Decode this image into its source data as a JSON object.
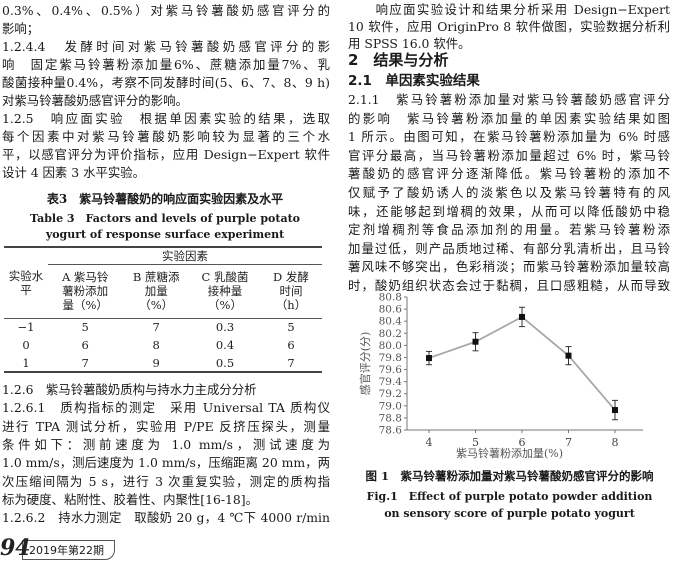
{
  "left": {
    "lines": [
      {
        "t": "0.3%、0.4%、0.5%）对紫马铃薯酸奶感官评分的",
        "s": ""
      },
      {
        "t": "影响；",
        "s": "last"
      },
      {
        "t": "1.2.4.4　发酵时间对紫马铃薯酸奶感官评分的影",
        "s": ""
      },
      {
        "t": "响　固定紫马铃薯粉添加量6%、蔗糖添加量7%、乳",
        "s": ""
      },
      {
        "t": "酸菌接种量0.4%，考察不同发酵时间(5、6、7、8、9 h)",
        "s": ""
      },
      {
        "t": "对紫马铃薯酸奶感官评分的影响。",
        "s": "last"
      },
      {
        "t": "1.2.5　响应面实验　根据单因素实验的结果，选取",
        "s": ""
      },
      {
        "t": "每个因素中对紫马铃薯酸奶影响较为显著的三个水",
        "s": ""
      },
      {
        "t": "平，以感官评分为评价指标，应用 Design−Expert 软件",
        "s": ""
      },
      {
        "t": "设计 4 因素 3 水平实验。",
        "s": "last"
      }
    ],
    "lines2": [
      {
        "t": "1.2.6　紫马铃薯酸奶质构与持水力主成分分析",
        "s": "last"
      },
      {
        "t": "1.2.6.1　质构指标的测定　采用 Universal TA 质构仪",
        "s": ""
      },
      {
        "t": "进行 TPA 测试分析，实验用 P/PE 反挤压探头，测量",
        "s": ""
      },
      {
        "t": "条件如下：测前速度为 1.0 mm/s，测试速度为",
        "s": ""
      },
      {
        "t": "1.0 mm/s，测后速度为 1.0 mm/s，压缩距离 20 mm，两",
        "s": ""
      },
      {
        "t": "次压缩间隔为 5 s，进行 3 次重复实验，测定的质构指",
        "s": ""
      },
      {
        "t": "标为硬度、粘附性、胶着性、内聚性[16-18]。",
        "s": "last"
      },
      {
        "t": "1.2.6.2　持水力测定　取酸奶 20 g，4 ℃下 4000 r/min",
        "s": ""
      }
    ]
  },
  "table": {
    "caption_cn": "表3　紫马铃薯酸奶的响应面实验因素及水平",
    "caption_en_1": "Table 3　Factors and levels of purple potato",
    "caption_en_2": "yogurt of response surface experiment",
    "group_header": "实验因素",
    "row_header": "实验水平",
    "columns": [
      "A 紫马铃薯粉添加量（%）",
      "B 蔗糖添加量（%）",
      "C 乳酸菌接种量（%）",
      "D 发酵时间（h）"
    ],
    "rows": [
      [
        "−1",
        "5",
        "7",
        "0.3",
        "5"
      ],
      [
        "0",
        "6",
        "8",
        "0.4",
        "6"
      ],
      [
        "1",
        "7",
        "9",
        "0.5",
        "7"
      ]
    ]
  },
  "right": {
    "lines": [
      {
        "t": "　　响应面实验设计和结果分析采用 Design−Expert",
        "s": ""
      },
      {
        "t": "10 软件，应用 OriginPro 8 软件做图，实验数据分析利",
        "s": ""
      },
      {
        "t": "用 SPSS 16.0 软件。",
        "s": "last"
      }
    ],
    "section": "2　结果与分析",
    "subsection": "2.1　单因素实验结果",
    "lines2": [
      {
        "t": "2.1.1　紫马铃薯粉添加量对紫马铃薯酸奶感官评分",
        "s": ""
      },
      {
        "t": "的影响　紫马铃薯粉添加量的单因素实验结果如图",
        "s": ""
      },
      {
        "t": "1 所示。由图可知，在紫马铃薯粉添加量为 6% 时感",
        "s": ""
      },
      {
        "t": "官评分最高，当马铃薯粉添加量超过 6% 时，紫马铃",
        "s": ""
      },
      {
        "t": "薯酸奶的感官评分逐渐降低。紫马铃薯粉的添加不",
        "s": ""
      },
      {
        "t": "仅赋予了酸奶诱人的淡紫色以及紫马铃薯特有的风",
        "s": ""
      },
      {
        "t": "味，还能够起到增稠的效果，从而可以降低酸奶中稳",
        "s": ""
      },
      {
        "t": "定剂增稠剂等食品添加剂的用量。若紫马铃薯粉添",
        "s": ""
      },
      {
        "t": "加量过低，则产品质地过稀、有部分乳清析出，且马铃",
        "s": ""
      },
      {
        "t": "薯风味不够突出，色彩稍淡；而紫马铃薯粉添加量较高",
        "s": ""
      },
      {
        "t": "时，酸奶组织状态会过于黏稠，且口感粗糙，从而导致",
        "s": ""
      }
    ]
  },
  "figure": {
    "caption_cn": "图 1　紫马铃薯粉添加量对紫马铃薯酸奶感官评分的影响",
    "caption_en_1": "Fig.1　Effect of purple potato powder addition",
    "caption_en_2": "on sensory score of purple potato yogurt"
  },
  "chart_data": {
    "type": "line",
    "xlabel": "紫马铃薯粉添加量(%)",
    "ylabel": "感官评分(分)",
    "x": [
      4,
      5,
      6,
      7,
      8
    ],
    "y": [
      79.79,
      80.06,
      80.47,
      79.83,
      78.93
    ],
    "error": [
      0.11,
      0.15,
      0.16,
      0.15,
      0.16
    ],
    "ylim": [
      78.6,
      80.8
    ],
    "yticks": [
      "78.6",
      "78.8",
      "79.0",
      "79.2",
      "79.4",
      "79.6",
      "79.8",
      "80.0",
      "80.2",
      "80.4",
      "80.6",
      "80.8"
    ],
    "xticks": [
      "4",
      "5",
      "6",
      "7",
      "8"
    ],
    "grid": false,
    "line_color": "#a8a8a8",
    "marker_color": "#111111"
  },
  "footer": {
    "page": "94",
    "issue": "2019年第22期"
  }
}
